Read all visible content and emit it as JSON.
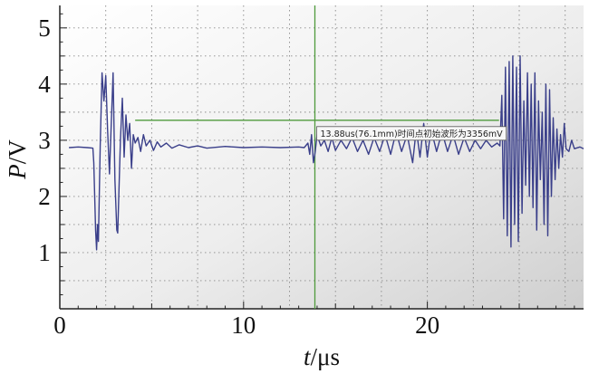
{
  "chart_data": {
    "type": "line",
    "xlabel_var": "t",
    "xlabel_unit": "/μs",
    "ylabel_var": "P",
    "ylabel_unit": "/V",
    "xlim": [
      0,
      28.5
    ],
    "ylim": [
      0,
      5.4
    ],
    "xticks": [
      0,
      10,
      20
    ],
    "yticks": [
      1,
      2,
      3,
      4,
      5
    ],
    "grid": true,
    "colors": {
      "line": "#3a3f8a",
      "cursor": "#4f9a3c",
      "grid": "#8a8a8a"
    },
    "cursor": {
      "x": 13.88,
      "y": 3.356
    },
    "annotation": "13.88us(76.1mm)时间点初始波形为3356mV",
    "series": [
      {
        "values": [
          [
            0.5,
            2.87
          ],
          [
            1.0,
            2.88
          ],
          [
            1.5,
            2.87
          ],
          [
            1.8,
            2.86
          ],
          [
            1.85,
            2.6
          ],
          [
            1.9,
            2.0
          ],
          [
            1.95,
            1.4
          ],
          [
            2.0,
            1.05
          ],
          [
            2.05,
            1.5
          ],
          [
            2.1,
            1.2
          ],
          [
            2.2,
            2.9
          ],
          [
            2.3,
            4.2
          ],
          [
            2.4,
            3.7
          ],
          [
            2.5,
            4.15
          ],
          [
            2.6,
            3.2
          ],
          [
            2.7,
            2.4
          ],
          [
            2.8,
            3.3
          ],
          [
            2.9,
            4.2
          ],
          [
            3.0,
            2.3
          ],
          [
            3.1,
            1.4
          ],
          [
            3.15,
            1.35
          ],
          [
            3.3,
            3.0
          ],
          [
            3.4,
            3.75
          ],
          [
            3.5,
            2.7
          ],
          [
            3.6,
            3.45
          ],
          [
            3.7,
            3.0
          ],
          [
            3.8,
            3.3
          ],
          [
            3.9,
            2.5
          ],
          [
            4.0,
            3.1
          ],
          [
            4.1,
            2.95
          ],
          [
            4.25,
            3.05
          ],
          [
            4.4,
            2.8
          ],
          [
            4.55,
            3.1
          ],
          [
            4.7,
            2.9
          ],
          [
            4.9,
            3.0
          ],
          [
            5.1,
            2.82
          ],
          [
            5.3,
            2.97
          ],
          [
            5.5,
            2.88
          ],
          [
            5.8,
            2.95
          ],
          [
            6.1,
            2.86
          ],
          [
            6.5,
            2.92
          ],
          [
            7.0,
            2.87
          ],
          [
            7.5,
            2.9
          ],
          [
            8.0,
            2.86
          ],
          [
            9.0,
            2.89
          ],
          [
            10.0,
            2.87
          ],
          [
            11.0,
            2.88
          ],
          [
            12.0,
            2.87
          ],
          [
            13.0,
            2.88
          ],
          [
            13.3,
            2.87
          ],
          [
            13.5,
            2.95
          ],
          [
            13.6,
            2.75
          ],
          [
            13.7,
            3.1
          ],
          [
            13.8,
            2.6
          ],
          [
            13.9,
            2.8
          ],
          [
            14.0,
            3.1
          ],
          [
            14.2,
            2.9
          ],
          [
            14.4,
            3.0
          ],
          [
            14.6,
            2.8
          ],
          [
            14.8,
            3.05
          ],
          [
            15.0,
            2.82
          ],
          [
            15.3,
            3.0
          ],
          [
            15.6,
            2.85
          ],
          [
            15.9,
            3.05
          ],
          [
            16.2,
            2.8
          ],
          [
            16.5,
            3.0
          ],
          [
            16.8,
            2.75
          ],
          [
            17.1,
            3.05
          ],
          [
            17.4,
            2.8
          ],
          [
            17.7,
            3.1
          ],
          [
            18.0,
            2.75
          ],
          [
            18.3,
            3.15
          ],
          [
            18.6,
            2.8
          ],
          [
            18.9,
            3.1
          ],
          [
            19.2,
            2.6
          ],
          [
            19.4,
            3.2
          ],
          [
            19.6,
            2.7
          ],
          [
            19.8,
            3.3
          ],
          [
            20.0,
            2.7
          ],
          [
            20.2,
            3.2
          ],
          [
            20.5,
            2.8
          ],
          [
            20.8,
            3.15
          ],
          [
            21.1,
            2.8
          ],
          [
            21.4,
            3.1
          ],
          [
            21.7,
            2.75
          ],
          [
            22.0,
            3.05
          ],
          [
            22.3,
            2.8
          ],
          [
            22.6,
            3.0
          ],
          [
            22.9,
            2.85
          ],
          [
            23.2,
            3.0
          ],
          [
            23.5,
            2.88
          ],
          [
            23.8,
            2.95
          ],
          [
            23.95,
            2.9
          ],
          [
            24.05,
            3.8
          ],
          [
            24.15,
            1.6
          ],
          [
            24.25,
            4.3
          ],
          [
            24.35,
            1.3
          ],
          [
            24.45,
            4.4
          ],
          [
            24.55,
            1.1
          ],
          [
            24.65,
            4.5
          ],
          [
            24.75,
            1.5
          ],
          [
            24.85,
            4.3
          ],
          [
            24.95,
            1.2
          ],
          [
            25.05,
            4.5
          ],
          [
            25.15,
            1.7
          ],
          [
            25.25,
            3.7
          ],
          [
            25.35,
            2.2
          ],
          [
            25.45,
            4.2
          ],
          [
            25.55,
            2.0
          ],
          [
            25.65,
            4.0
          ],
          [
            25.75,
            1.8
          ],
          [
            25.85,
            4.2
          ],
          [
            25.95,
            1.4
          ],
          [
            26.05,
            3.7
          ],
          [
            26.15,
            2.3
          ],
          [
            26.25,
            3.5
          ],
          [
            26.35,
            1.5
          ],
          [
            26.45,
            4.0
          ],
          [
            26.55,
            1.3
          ],
          [
            26.65,
            3.9
          ],
          [
            26.75,
            2.0
          ],
          [
            26.85,
            3.4
          ],
          [
            26.95,
            2.3
          ],
          [
            27.05,
            3.2
          ],
          [
            27.15,
            2.5
          ],
          [
            27.25,
            3.1
          ],
          [
            27.35,
            2.7
          ],
          [
            27.45,
            3.3
          ],
          [
            27.55,
            2.85
          ],
          [
            27.7,
            2.8
          ],
          [
            27.85,
            3.0
          ],
          [
            28.0,
            2.85
          ],
          [
            28.3,
            2.88
          ],
          [
            28.5,
            2.85
          ]
        ]
      }
    ]
  }
}
